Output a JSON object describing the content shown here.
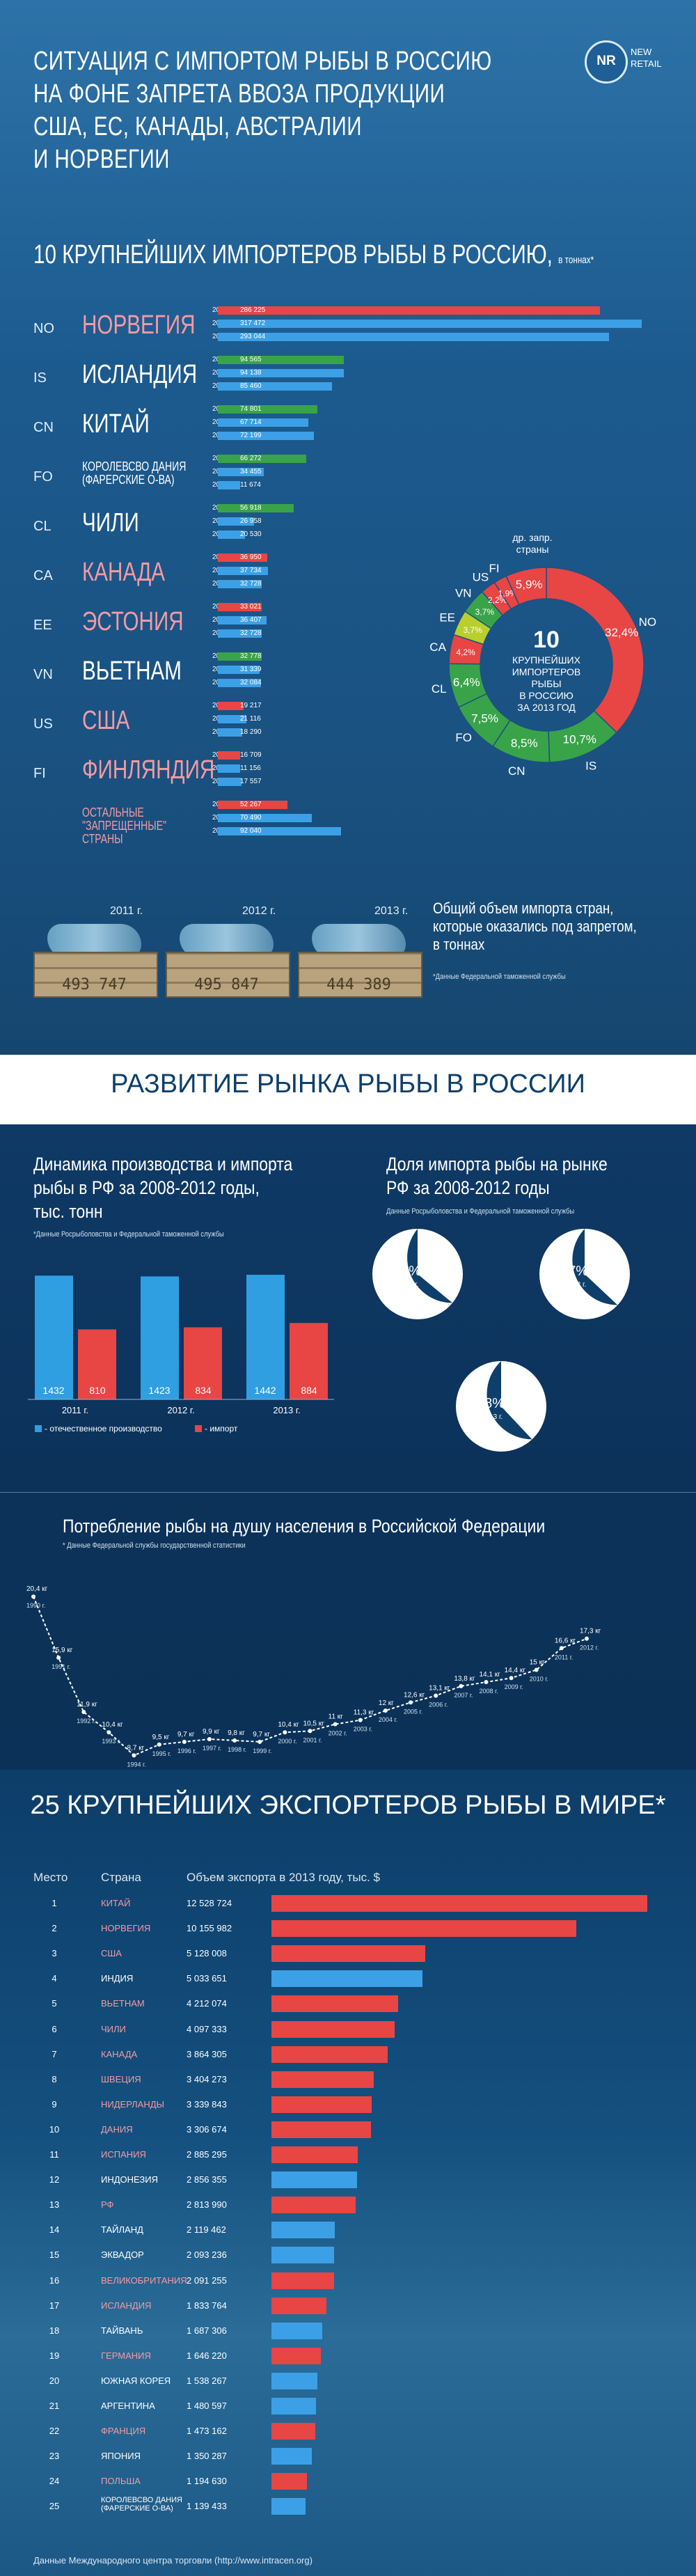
{
  "header": {
    "title": "СИТУАЦИЯ С ИМПОРТОМ РЫБЫ В РОССИЮ\nНА ФОНЕ ЗАПРЕТА ВВОЗА ПРОДУКЦИИ\nСША, ЕС, КАНАДЫ, АВСТРАЛИИ\nИ НОРВЕГИИ",
    "logo_mark": "NR",
    "logo_text1": "NEW",
    "logo_text2": "RETAIL"
  },
  "importers": {
    "heading": "10 КРУПНЕЙШИХ ИМПОРТЕРОВ РЫБЫ В РОССИЮ,",
    "heading_unit": "в тоннах*",
    "colors": {
      "banned_2013": "#e84545",
      "allowed_2013": "#39a34a",
      "prior_years": "#3ca0e6"
    },
    "year_labels": [
      "2013 г.",
      "2012 г.",
      "2011 г."
    ],
    "rows": [
      {
        "code": "NO",
        "name": "НОРВЕГИЯ",
        "banned": true,
        "values": [
          286225,
          317472,
          293044
        ],
        "labels": [
          "286 225",
          "317 472",
          "293 044"
        ]
      },
      {
        "code": "IS",
        "name": "ИСЛАНДИЯ",
        "banned": false,
        "values": [
          94565,
          94138,
          85460
        ],
        "labels": [
          "94 565",
          "94 138",
          "85 460"
        ]
      },
      {
        "code": "CN",
        "name": "КИТАЙ",
        "banned": false,
        "values": [
          74801,
          67714,
          72199
        ],
        "labels": [
          "74 801",
          "67 714",
          "72 199"
        ]
      },
      {
        "code": "FO",
        "name": "КОРОЛЕВСВО ДАНИЯ\n(ФАРЕРСКИЕ О-ВА)",
        "banned": false,
        "small": true,
        "values": [
          66272,
          34455,
          11674
        ],
        "labels": [
          "66 272",
          "34 455",
          "11 674"
        ]
      },
      {
        "code": "CL",
        "name": "ЧИЛИ",
        "banned": false,
        "values": [
          56918,
          26958,
          20530
        ],
        "labels": [
          "56 918",
          "26 958",
          "20 530"
        ]
      },
      {
        "code": "CA",
        "name": "КАНАДА",
        "banned": true,
        "values": [
          36950,
          37734,
          32728
        ],
        "labels": [
          "36 950",
          "37 734",
          "32 728"
        ]
      },
      {
        "code": "EE",
        "name": "ЭСТОНИЯ",
        "banned": true,
        "values": [
          33021,
          36407,
          32728
        ],
        "labels": [
          "33 021",
          "36 407",
          "32 728"
        ]
      },
      {
        "code": "VN",
        "name": "ВЬЕТНАМ",
        "banned": false,
        "values": [
          32778,
          31339,
          32084
        ],
        "labels": [
          "32 778",
          "31 339",
          "32 084"
        ]
      },
      {
        "code": "US",
        "name": "США",
        "banned": true,
        "values": [
          19217,
          21116,
          18290
        ],
        "labels": [
          "19 217",
          "21 116",
          "18 290"
        ]
      },
      {
        "code": "FI",
        "name": "ФИНЛЯНДИЯ",
        "banned": true,
        "values": [
          16709,
          11156,
          17557
        ],
        "labels": [
          "16 709",
          "11 156",
          "17 557"
        ]
      },
      {
        "code": "",
        "name": "ОСТАЛЬНЫЕ\n\"ЗАПРЕЩЕННЫЕ\"\nСТРАНЫ",
        "banned": true,
        "small": true,
        "values": [
          52267,
          70490,
          92040
        ],
        "labels": [
          "52 267",
          "70 490",
          "92 040"
        ]
      }
    ],
    "donut": {
      "center_number": "10",
      "center_text": "КРУПНЕЙШИХ\nИМПОРТЕРОВ\nРЫБЫ\nВ РОССИЮ\nЗА 2013 ГОД",
      "other_label": "др. запр.\nстраны",
      "segments": [
        {
          "code": "NO",
          "value": 32.4,
          "label": "32,4%",
          "color": "#e84545"
        },
        {
          "code": "IS",
          "value": 10.7,
          "label": "10,7%",
          "color": "#39a34a"
        },
        {
          "code": "CN",
          "value": 8.5,
          "label": "8,5%",
          "color": "#39a34a"
        },
        {
          "code": "FO",
          "value": 7.5,
          "label": "7,5%",
          "color": "#39a34a"
        },
        {
          "code": "CL",
          "value": 6.4,
          "label": "6,4%",
          "color": "#39a34a"
        },
        {
          "code": "CA",
          "value": 4.2,
          "label": "4,2%",
          "color": "#e84545"
        },
        {
          "code": "EE",
          "value": 3.7,
          "label": "3,7%",
          "color": "#b8cf2c"
        },
        {
          "code": "VN",
          "value": 3.7,
          "label": "3,7%",
          "color": "#39a34a"
        },
        {
          "code": "US",
          "value": 2.2,
          "label": "2,2%",
          "color": "#e84545"
        },
        {
          "code": "FI",
          "value": 1.9,
          "label": "1,9%",
          "color": "#e84545"
        },
        {
          "code": "other",
          "value": 5.9,
          "label": "5,9%",
          "color": "#e84545"
        }
      ]
    },
    "totals": [
      {
        "year": "2011 г.",
        "value": "493 747"
      },
      {
        "year": "2012 г.",
        "value": "495 847"
      },
      {
        "year": "2013 г.",
        "value": "444 389"
      }
    ],
    "totals_caption": "Общий объем импорта стран,\nкоторые оказались под запретом,\nв тоннах",
    "source": "*Данные Федеральной таможенной службы"
  },
  "market": {
    "heading": "РАЗВИТИЕ РЫНКА РЫБЫ В РОССИИ",
    "production": {
      "title": "Динамика производства и импорта\nрыбы в РФ за 2008-2012 годы,\nтыс. тонн",
      "source": "*Данные Росрыболовства и Федеральной таможенной службы",
      "colors": {
        "domestic": "#2f9fe2",
        "import": "#e84545"
      },
      "legend_domestic": "- отечественное производство",
      "legend_import": "- импорт"
    },
    "share": {
      "title": "Доля импорта рыбы на рынке\nРФ за 2008-2012 годы",
      "source": "Данные Росрыболовства и Федеральной таможенной службы",
      "pies": [
        {
          "label": "36%",
          "year": "2011 г.",
          "value": 36
        },
        {
          "label": "37%",
          "year": "2012 г.",
          "value": 37
        },
        {
          "label": "38%",
          "year": "2013 г.",
          "value": 38
        }
      ]
    },
    "consumption": {
      "title": "Потребление рыбы на душу населения в Российской Федерации",
      "source": "* Данные Федеральной службы государственной статистики"
    }
  },
  "exporters": {
    "heading": "25 КРУПНЕЙШИХ ЭКСПОРТЕРОВ РЫБЫ В МИРЕ*",
    "col_rank": "Место",
    "col_country": "Страна",
    "col_volume": "Объем экспорта в 2013 году, тыс. $",
    "colors": {
      "banned": "#e84545",
      "allowed": "#3ca0e6"
    },
    "source": "Данные Международного центра торговли (http://www.intracen.org)",
    "rows": [
      {
        "rank": "1",
        "country": "КИТАЙ",
        "value": 12528724,
        "label": "12 528 724",
        "banned": true
      },
      {
        "rank": "2",
        "country": "НОРВЕГИЯ",
        "value": 10155982,
        "label": "10 155 982",
        "banned": true
      },
      {
        "rank": "3",
        "country": "США",
        "value": 5128008,
        "label": "5 128 008",
        "banned": true
      },
      {
        "rank": "4",
        "country": "ИНДИЯ",
        "value": 5033651,
        "label": "5 033 651",
        "banned": false
      },
      {
        "rank": "5",
        "country": "ВЬЕТНАМ",
        "value": 4212074,
        "label": "4 212 074",
        "banned": true
      },
      {
        "rank": "6",
        "country": "ЧИЛИ",
        "value": 4097333,
        "label": "4 097 333",
        "banned": true
      },
      {
        "rank": "7",
        "country": "КАНАДА",
        "value": 3864305,
        "label": "3 864 305",
        "banned": true
      },
      {
        "rank": "8",
        "country": "ШВЕЦИЯ",
        "value": 3404273,
        "label": "3 404 273",
        "banned": true
      },
      {
        "rank": "9",
        "country": "НИДЕРЛАНДЫ",
        "value": 3339843,
        "label": "3 339 843",
        "banned": true
      },
      {
        "rank": "10",
        "country": "ДАНИЯ",
        "value": 3306674,
        "label": "3 306 674",
        "banned": true
      },
      {
        "rank": "11",
        "country": "ИСПАНИЯ",
        "value": 2885295,
        "label": "2 885 295",
        "banned": true
      },
      {
        "rank": "12",
        "country": "ИНДОНЕЗИЯ",
        "value": 2856355,
        "label": "2 856 355",
        "banned": false
      },
      {
        "rank": "13",
        "country": "РФ",
        "value": 2813990,
        "label": "2 813 990",
        "banned": true
      },
      {
        "rank": "14",
        "country": "ТАЙЛАНД",
        "value": 2119462,
        "label": "2 119 462",
        "banned": false
      },
      {
        "rank": "15",
        "country": "ЭКВАДОР",
        "value": 2093236,
        "label": "2 093 236",
        "banned": false
      },
      {
        "rank": "16",
        "country": "ВЕЛИКОБРИТАНИЯ",
        "value": 2091255,
        "label": "2 091 255",
        "banned": true
      },
      {
        "rank": "17",
        "country": "ИСЛАНДИЯ",
        "value": 1833764,
        "label": "1 833 764",
        "banned": true
      },
      {
        "rank": "18",
        "country": "ТАЙВАНЬ",
        "value": 1687306,
        "label": "1 687 306",
        "banned": false
      },
      {
        "rank": "19",
        "country": "ГЕРМАНИЯ",
        "value": 1646220,
        "label": "1 646 220",
        "banned": true
      },
      {
        "rank": "20",
        "country": "ЮЖНАЯ КОРЕЯ",
        "value": 1538267,
        "label": "1 538 267",
        "banned": false
      },
      {
        "rank": "21",
        "country": "АРГЕНТИНА",
        "value": 1480597,
        "label": "1 480 597",
        "banned": false
      },
      {
        "rank": "22",
        "country": "ФРАНЦИЯ",
        "value": 1473162,
        "label": "1 473 162",
        "banned": true
      },
      {
        "rank": "23",
        "country": "ЯПОНИЯ",
        "value": 1350287,
        "label": "1 350 287",
        "banned": false
      },
      {
        "rank": "24",
        "country": "ПОЛЬША",
        "value": 1194630,
        "label": "1 194 630",
        "banned": true
      },
      {
        "rank": "25",
        "country": "КОРОЛЕВСВО ДАНИЯ\n(ФАРЕРСКИЕ О-ВА)",
        "value": 1139433,
        "label": "1 139 433",
        "banned": false
      }
    ]
  },
  "chart_data": [
    {
      "type": "bar",
      "title": "10 КРУПНЕЙШИХ ИМПОРТЕРОВ РЫБЫ В РОССИЮ, в тоннах*",
      "categories": [
        "НОРВЕГИЯ",
        "ИСЛАНДИЯ",
        "КИТАЙ",
        "КОРОЛЕВСВО ДАНИЯ (ФАРЕРСКИЕ О-ВА)",
        "ЧИЛИ",
        "КАНАДА",
        "ЭСТОНИЯ",
        "ВЬЕТНАМ",
        "США",
        "ФИНЛЯНДИЯ",
        "ОСТАЛЬНЫЕ \"ЗАПРЕЩЕННЫЕ\" СТРАНЫ"
      ],
      "series": [
        {
          "name": "2013 г.",
          "values": [
            286225,
            94565,
            74801,
            66272,
            56918,
            36950,
            33021,
            32778,
            19217,
            16709,
            52267
          ]
        },
        {
          "name": "2012 г.",
          "values": [
            317472,
            94138,
            67714,
            34455,
            26958,
            37734,
            36407,
            31339,
            21116,
            11156,
            70490
          ]
        },
        {
          "name": "2011 г.",
          "values": [
            293044,
            85460,
            72199,
            11674,
            20530,
            32728,
            32728,
            32084,
            18290,
            17557,
            92040
          ]
        }
      ]
    },
    {
      "type": "pie",
      "title": "10 КРУПНЕЙШИХ ИМПОРТЕРОВ РЫБЫ В РОССИЮ ЗА 2013 ГОД",
      "categories": [
        "NO",
        "IS",
        "CN",
        "FO",
        "CL",
        "CA",
        "EE",
        "VN",
        "US",
        "FI",
        "др. запр. страны"
      ],
      "values": [
        32.4,
        10.7,
        8.5,
        7.5,
        6.4,
        4.2,
        3.7,
        3.7,
        2.2,
        1.9,
        5.9
      ]
    },
    {
      "type": "bar",
      "title": "Динамика производства и импорта рыбы в РФ за 2008-2012 годы, тыс. тонн",
      "categories": [
        "2011 г.",
        "2012 г.",
        "2013 г."
      ],
      "series": [
        {
          "name": "отечественное производство",
          "values": [
            1432,
            1423,
            1442
          ]
        },
        {
          "name": "импорт",
          "values": [
            810,
            834,
            884
          ]
        }
      ]
    },
    {
      "type": "pie",
      "title": "Доля импорта рыбы на рынке РФ за 2008-2012 годы",
      "categories": [
        "2011 г.",
        "2012 г.",
        "2013 г."
      ],
      "values": [
        36,
        37,
        38
      ]
    },
    {
      "type": "line",
      "title": "Потребление рыбы на душу населения в Российской Федерации",
      "x": [
        "1990",
        "1991",
        "1992",
        "1993",
        "1994",
        "1995",
        "1996",
        "1997",
        "1998",
        "1999",
        "2000",
        "2001",
        "2002",
        "2003",
        "2004",
        "2005",
        "2006",
        "2007",
        "2008",
        "2009",
        "2010",
        "2011",
        "2012"
      ],
      "values": [
        20.4,
        15.9,
        11.9,
        10.4,
        8.7,
        9.5,
        9.7,
        9.9,
        9.8,
        9.7,
        10.4,
        10.5,
        11.0,
        11.3,
        12.0,
        12.6,
        13.1,
        13.8,
        14.1,
        14.4,
        15.0,
        16.6,
        17.3
      ],
      "labels": [
        "20,4 кг",
        "15,9 кг",
        "11,9 кг",
        "10,4 кг",
        "8,7 кг",
        "9,5 кг",
        "9,7 кг",
        "9,9 кг",
        "9,8 кг",
        "9,7 кг",
        "10,4 кг",
        "10,5 кг",
        "11 кг",
        "11,3 кг",
        "12 кг",
        "12,6 кг",
        "13,1 кг",
        "13,8 кг",
        "14,1 кг",
        "14,4 кг",
        "15 кг",
        "16,6 кг",
        "17,3 кг"
      ],
      "x_labels": [
        "1990 г.",
        "1991 г.",
        "1992 г.",
        "1993 г.",
        "1994 г.",
        "1995 г.",
        "1996 г.",
        "1997 г.",
        "1998 г.",
        "1999 г.",
        "2000 г.",
        "2001 г.",
        "2002 г.",
        "2003 г.",
        "2004 г.",
        "2005 г.",
        "2006 г.",
        "2007 г.",
        "2008 г.",
        "2009 г.",
        "2010 г.",
        "2011 г.",
        "2012 г."
      ]
    },
    {
      "type": "bar",
      "title": "25 КРУПНЕЙШИХ ЭКСПОРТЕРОВ РЫБЫ В МИРЕ*",
      "ylabel": "Объем экспорта в 2013 году, тыс. $",
      "categories": [
        "КИТАЙ",
        "НОРВЕГИЯ",
        "США",
        "ИНДИЯ",
        "ВЬЕТНАМ",
        "ЧИЛИ",
        "КАНАДА",
        "ШВЕЦИЯ",
        "НИДЕРЛАНДЫ",
        "ДАНИЯ",
        "ИСПАНИЯ",
        "ИНДОНЕЗИЯ",
        "РФ",
        "ТАЙЛАНД",
        "ЭКВАДОР",
        "ВЕЛИКОБРИТАНИЯ",
        "ИСЛАНДИЯ",
        "ТАЙВАНЬ",
        "ГЕРМАНИЯ",
        "ЮЖНАЯ КОРЕЯ",
        "АРГЕНТИНА",
        "ФРАНЦИЯ",
        "ЯПОНИЯ",
        "ПОЛЬША",
        "КОРОЛЕВСВО ДАНИЯ (ФАРЕРСКИЕ О-ВА)"
      ],
      "values": [
        12528724,
        10155982,
        5128008,
        5033651,
        4212074,
        4097333,
        3864305,
        3404273,
        3339843,
        3306674,
        2885295,
        2856355,
        2813990,
        2119462,
        2093236,
        2091255,
        1833764,
        1687306,
        1646220,
        1538267,
        1480597,
        1473162,
        1350287,
        1194630,
        1139433
      ]
    }
  ]
}
